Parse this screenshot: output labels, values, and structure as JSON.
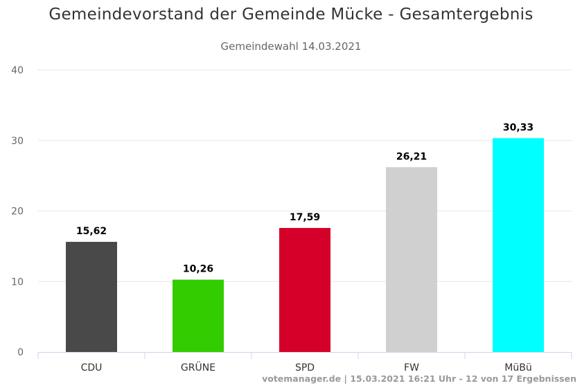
{
  "header": {
    "title": "Gemeindevorstand der Gemeinde Mücke - Gesamtergebnis",
    "subtitle": "Gemeindewahl 14.03.2021"
  },
  "credits": "votemanager.de | 15.03.2021 16:21 Uhr - 12 von 17 Ergebnissen",
  "chart_data": {
    "type": "bar",
    "title": "Gemeindevorstand der Gemeinde Mücke - Gesamtergebnis",
    "subtitle": "Gemeindewahl 14.03.2021",
    "categories": [
      "CDU",
      "GRÜNE",
      "SPD",
      "FW",
      "MüBü"
    ],
    "values": [
      15.62,
      10.26,
      17.59,
      26.21,
      30.33
    ],
    "data_labels": [
      "15,62",
      "10,26",
      "17,59",
      "26,21",
      "30,33"
    ],
    "colors": [
      "#494949",
      "#33cc00",
      "#d40029",
      "#d0d0d0",
      "#00ffff"
    ],
    "xlabel": "",
    "ylabel": "",
    "ylim": [
      0,
      40
    ],
    "yticks": [
      0,
      10,
      20,
      30,
      40
    ],
    "grid": true,
    "legend": "none"
  }
}
